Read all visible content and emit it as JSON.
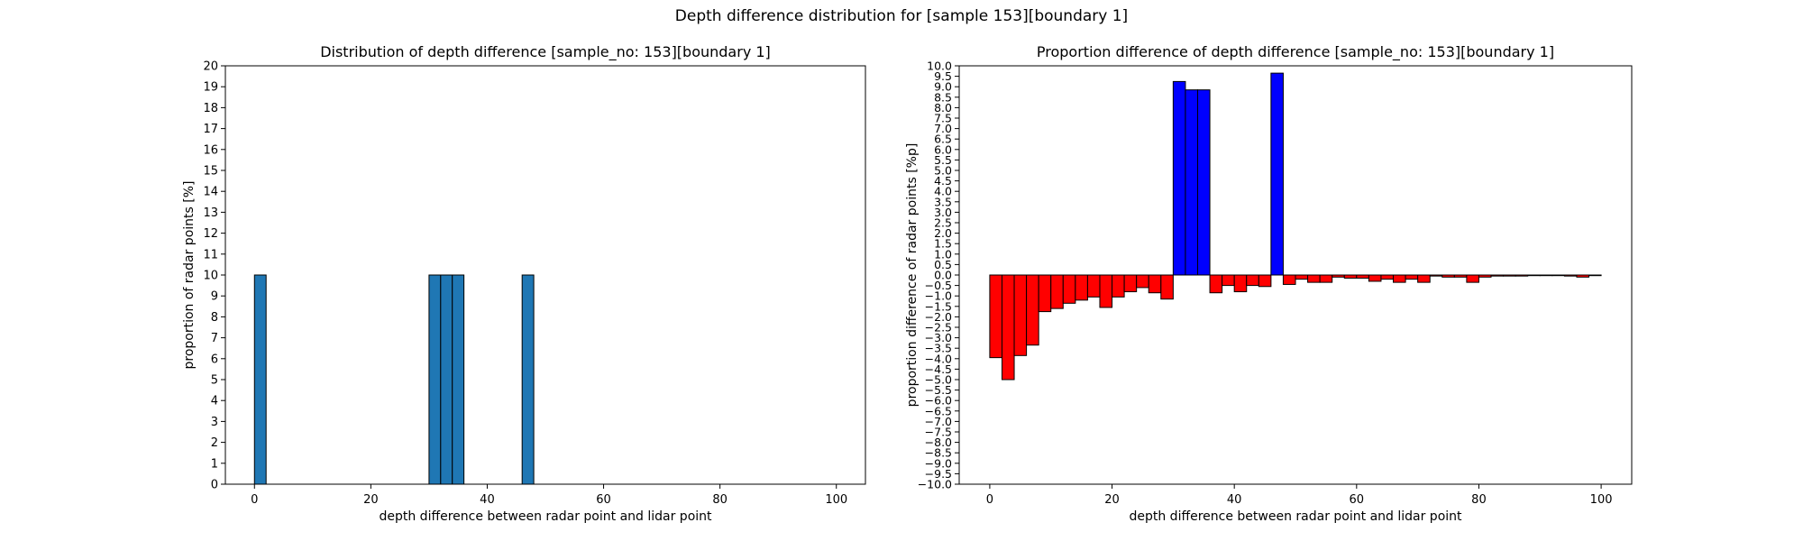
{
  "suptitle": "Depth difference distribution for [sample 153][boundary 1]",
  "chart_data": [
    {
      "type": "bar",
      "title": "Distribution of depth difference [sample_no: 153][boundary 1]",
      "xlabel": "depth difference between radar point and lidar point",
      "ylabel": "proportion of radar points [%]",
      "xlim": [
        -5,
        105
      ],
      "ylim": [
        0,
        20
      ],
      "xticks": [
        0,
        20,
        40,
        60,
        80,
        100
      ],
      "yticks": [
        0,
        1,
        2,
        3,
        4,
        5,
        6,
        7,
        8,
        9,
        10,
        11,
        12,
        13,
        14,
        15,
        16,
        17,
        18,
        19,
        20
      ],
      "bin_width": 2,
      "color": "#1f77b4",
      "bars": [
        {
          "x": 0,
          "value": 10
        },
        {
          "x": 30,
          "value": 10
        },
        {
          "x": 32,
          "value": 10
        },
        {
          "x": 34,
          "value": 10
        },
        {
          "x": 46,
          "value": 10
        }
      ]
    },
    {
      "type": "bar",
      "title": "Proportion difference of depth difference [sample_no: 153][boundary 1]",
      "xlabel": "depth difference between radar point and lidar point",
      "ylabel": "proportion difference of radar points [%p]",
      "xlim": [
        -5,
        105
      ],
      "ylim": [
        -10,
        10
      ],
      "xticks": [
        0,
        20,
        40,
        60,
        80,
        100
      ],
      "ytick_step": 0.5,
      "bin_width": 2,
      "positive_color": "#0000ff",
      "negative_color": "#ff0000",
      "bins_start": 0,
      "values": [
        -3.95,
        -5.0,
        -3.85,
        -3.35,
        -1.75,
        -1.6,
        -1.35,
        -1.2,
        -1.05,
        -1.55,
        -1.05,
        -0.8,
        -0.6,
        -0.85,
        -1.15,
        9.25,
        8.85,
        8.85,
        -0.85,
        -0.5,
        -0.8,
        -0.5,
        -0.55,
        9.65,
        -0.45,
        -0.2,
        -0.35,
        -0.35,
        -0.1,
        -0.15,
        -0.15,
        -0.3,
        -0.2,
        -0.35,
        -0.2,
        -0.35,
        -0.05,
        -0.1,
        -0.1,
        -0.35,
        -0.1,
        -0.05,
        -0.05,
        -0.05,
        -0.03,
        -0.03,
        -0.03,
        -0.05,
        -0.1,
        -0.03
      ]
    }
  ]
}
